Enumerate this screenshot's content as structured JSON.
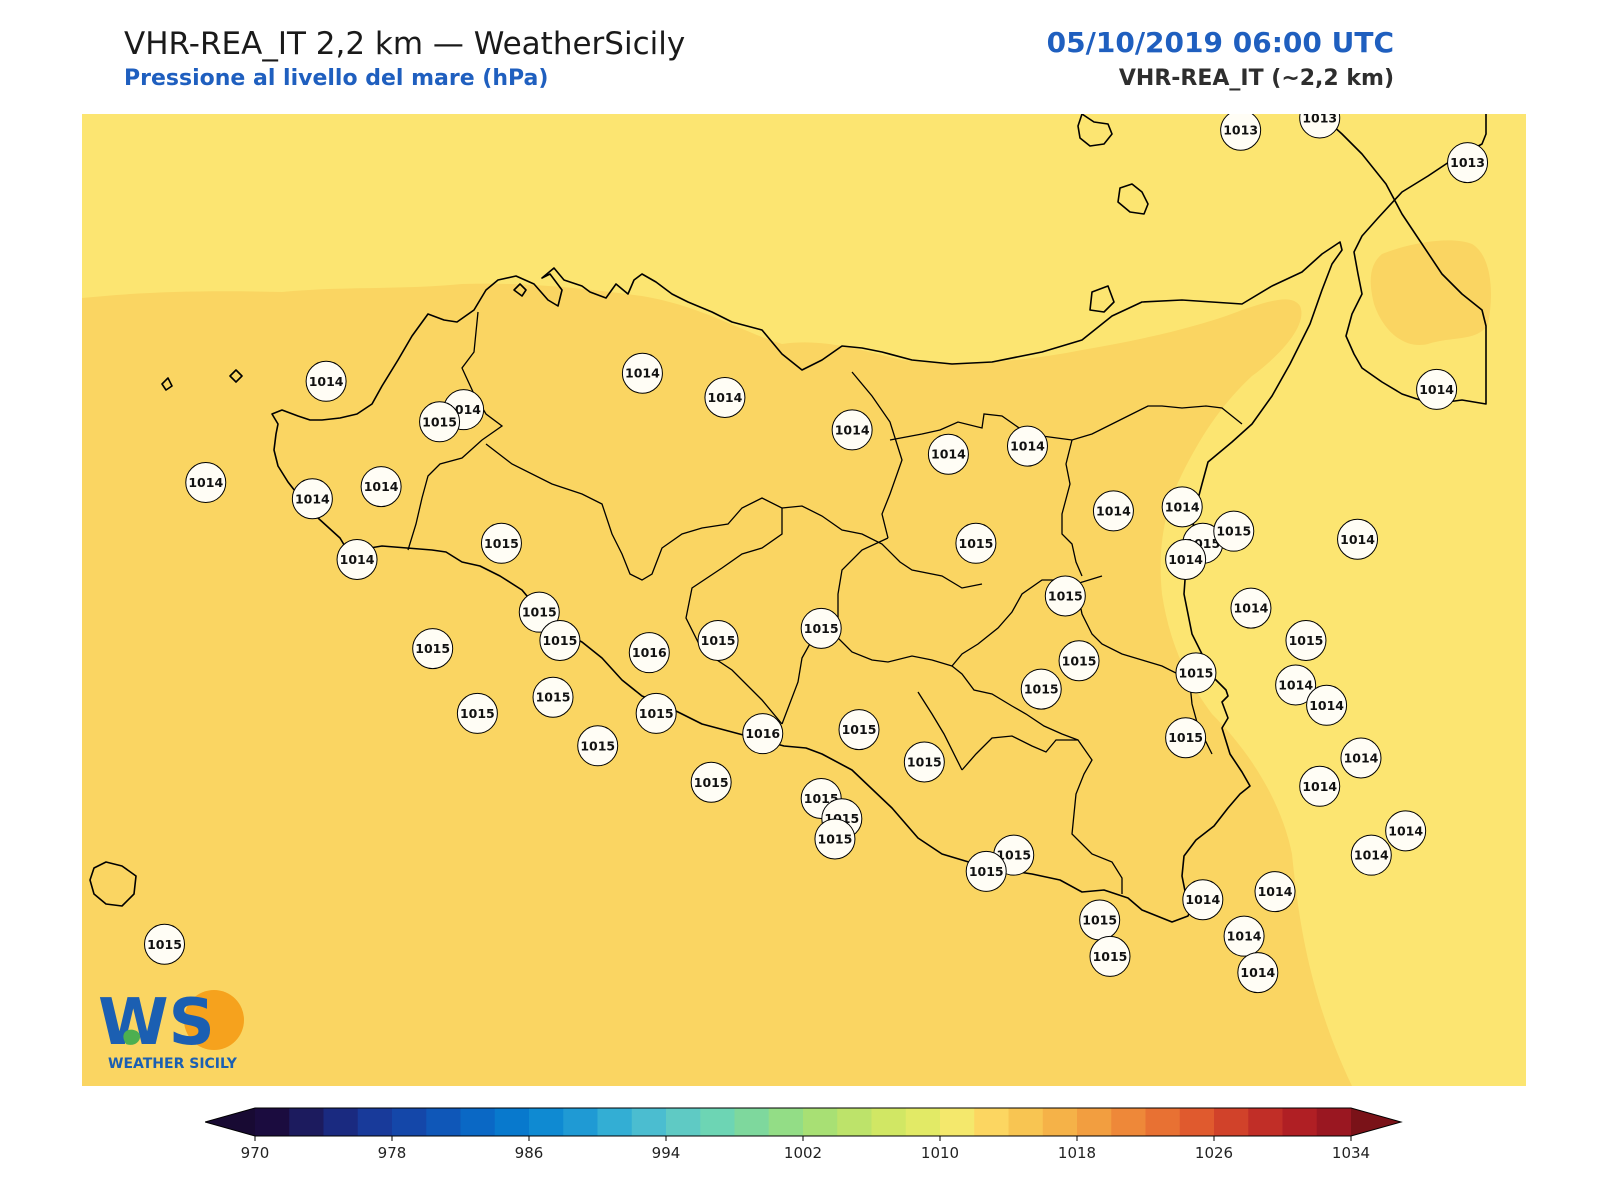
{
  "header": {
    "title": "VHR-REA_IT 2,2 km — WeatherSicily",
    "subtitle": "Pressione al livello del mare (hPa)",
    "datetime": "05/10/2019 06:00 UTC",
    "model": "VHR-REA_IT (~2,2 km)"
  },
  "logo": {
    "mark": "WS",
    "text": "WEATHER SICILY"
  },
  "colors": {
    "field_1014": "#fce571",
    "field_1015": "#fad562",
    "coast": "#000000",
    "marker_fill": "#fffdf5",
    "accent": "#1f5fbf"
  },
  "colorbar": {
    "ticks": [
      "970",
      "978",
      "986",
      "994",
      "1002",
      "1010",
      "1018",
      "1026",
      "1034"
    ],
    "min": 970,
    "max": 1034,
    "step": 2,
    "extend": "both",
    "colors": [
      "#1b0c3f",
      "#1c1b5e",
      "#1a2a80",
      "#183a9a",
      "#1447a9",
      "#0f57b8",
      "#0a68c5",
      "#0879cd",
      "#0f8ad2",
      "#1f9ad4",
      "#33aed4",
      "#4bbdd0",
      "#5fcac4",
      "#6dd5b4",
      "#7ed89d",
      "#93dd86",
      "#a8e074",
      "#bde36a",
      "#d1e764",
      "#e2ea66",
      "#f4e86c",
      "#fcd661",
      "#f8c552",
      "#f5b248",
      "#f29e40",
      "#ee8839",
      "#e87133",
      "#e05a2e",
      "#d1422a",
      "#c12e27",
      "#b01f24",
      "#9a1721"
    ],
    "under_color": "#180a33",
    "over_color": "#7a1218"
  },
  "stations": [
    {
      "value": "1013",
      "lon": 15.07,
      "lat": 38.81
    },
    {
      "value": "1013",
      "lon": 15.3,
      "lat": 38.84
    },
    {
      "value": "1013",
      "lon": 15.73,
      "lat": 38.73
    },
    {
      "value": "1014",
      "lon": 12.41,
      "lat": 38.19
    },
    {
      "value": "1014",
      "lon": 12.81,
      "lat": 38.12
    },
    {
      "value": "1015",
      "lon": 12.74,
      "lat": 38.09
    },
    {
      "value": "1014",
      "lon": 13.33,
      "lat": 38.21
    },
    {
      "value": "1014",
      "lon": 13.57,
      "lat": 38.15
    },
    {
      "value": "1014",
      "lon": 13.94,
      "lat": 38.07
    },
    {
      "value": "1014",
      "lon": 14.22,
      "lat": 38.01
    },
    {
      "value": "1014",
      "lon": 14.45,
      "lat": 38.03
    },
    {
      "value": "1014",
      "lon": 12.06,
      "lat": 37.94
    },
    {
      "value": "1014",
      "lon": 12.37,
      "lat": 37.9
    },
    {
      "value": "1014",
      "lon": 12.57,
      "lat": 37.93
    },
    {
      "value": "1014",
      "lon": 12.5,
      "lat": 37.75
    },
    {
      "value": "1015",
      "lon": 12.92,
      "lat": 37.79
    },
    {
      "value": "1015",
      "lon": 13.03,
      "lat": 37.62
    },
    {
      "value": "1015",
      "lon": 12.72,
      "lat": 37.53
    },
    {
      "value": "1015",
      "lon": 13.09,
      "lat": 37.55
    },
    {
      "value": "1016",
      "lon": 13.35,
      "lat": 37.52
    },
    {
      "value": "1015",
      "lon": 13.55,
      "lat": 37.55
    },
    {
      "value": "1015",
      "lon": 13.85,
      "lat": 37.58
    },
    {
      "value": "1015",
      "lon": 12.85,
      "lat": 37.37
    },
    {
      "value": "1015",
      "lon": 13.07,
      "lat": 37.41
    },
    {
      "value": "1015",
      "lon": 13.37,
      "lat": 37.37
    },
    {
      "value": "1016",
      "lon": 13.68,
      "lat": 37.32
    },
    {
      "value": "1015",
      "lon": 13.96,
      "lat": 37.33
    },
    {
      "value": "1015",
      "lon": 13.2,
      "lat": 37.29
    },
    {
      "value": "1015",
      "lon": 13.53,
      "lat": 37.2
    },
    {
      "value": "1015",
      "lon": 13.85,
      "lat": 37.16
    },
    {
      "value": "1015",
      "lon": 13.91,
      "lat": 37.11
    },
    {
      "value": "1015",
      "lon": 13.89,
      "lat": 37.06
    },
    {
      "value": "1015",
      "lon": 14.15,
      "lat": 37.25
    },
    {
      "value": "1015",
      "lon": 14.41,
      "lat": 37.02
    },
    {
      "value": "1015",
      "lon": 14.33,
      "lat": 36.98
    },
    {
      "value": "1015",
      "lon": 14.66,
      "lat": 36.86
    },
    {
      "value": "1015",
      "lon": 14.69,
      "lat": 36.77
    },
    {
      "value": "1014",
      "lon": 14.96,
      "lat": 36.91
    },
    {
      "value": "1014",
      "lon": 15.08,
      "lat": 36.82
    },
    {
      "value": "1014",
      "lon": 15.12,
      "lat": 36.73
    },
    {
      "value": "1015",
      "lon": 14.3,
      "lat": 37.79
    },
    {
      "value": "1015",
      "lon": 14.56,
      "lat": 37.66
    },
    {
      "value": "1015",
      "lon": 14.6,
      "lat": 37.5
    },
    {
      "value": "1015",
      "lon": 14.49,
      "lat": 37.43
    },
    {
      "value": "1015",
      "lon": 14.96,
      "lat": 37.79
    },
    {
      "value": "1014",
      "lon": 14.7,
      "lat": 37.87
    },
    {
      "value": "1014",
      "lon": 14.91,
      "lat": 37.75
    },
    {
      "value": "1015",
      "lon": 14.94,
      "lat": 37.47
    },
    {
      "value": "1015",
      "lon": 14.91,
      "lat": 37.31
    },
    {
      "value": "1014",
      "lon": 15.1,
      "lat": 37.63
    },
    {
      "value": "1014",
      "lon": 15.23,
      "lat": 37.44
    },
    {
      "value": "1014",
      "lon": 15.32,
      "lat": 37.39
    },
    {
      "value": "1015",
      "lon": 15.26,
      "lat": 37.55
    },
    {
      "value": "1014",
      "lon": 14.9,
      "lat": 37.88
    },
    {
      "value": "1015",
      "lon": 15.05,
      "lat": 37.82
    },
    {
      "value": "1014",
      "lon": 15.42,
      "lat": 37.26
    },
    {
      "value": "1014",
      "lon": 15.3,
      "lat": 37.19
    },
    {
      "value": "1014",
      "lon": 15.45,
      "lat": 37.02
    },
    {
      "value": "1014",
      "lon": 15.55,
      "lat": 37.08
    },
    {
      "value": "1014",
      "lon": 15.17,
      "lat": 36.93
    },
    {
      "value": "1015",
      "lon": 11.94,
      "lat": 36.8
    },
    {
      "value": "1014",
      "lon": 15.64,
      "lat": 38.17
    },
    {
      "value": "1014",
      "lon": 15.41,
      "lat": 37.8
    }
  ]
}
